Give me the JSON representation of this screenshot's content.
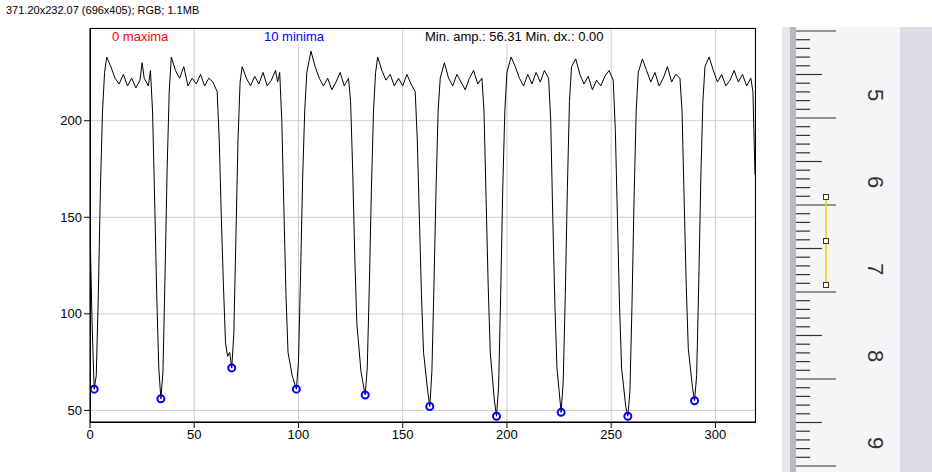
{
  "chart_data": {
    "type": "line",
    "title": "371.20x232.07  (696x405); RGB; 1.1MB",
    "annotations": [
      {
        "text": "0 maxima",
        "color": "#ff0000"
      },
      {
        "text": "10 minima",
        "color": "#0000ff"
      },
      {
        "text": "Min. amp.: 56.31  Min. dx.: 0.00",
        "color": "#000000"
      }
    ],
    "x": [
      0,
      1,
      2,
      3,
      4,
      5,
      6,
      7,
      8,
      10,
      12,
      14,
      16,
      18,
      20,
      22,
      24,
      25,
      26,
      28,
      29,
      30,
      31,
      32,
      33,
      34,
      35,
      36,
      37,
      38,
      39,
      41,
      43,
      45,
      47,
      49,
      51,
      53,
      55,
      57,
      59,
      61,
      62,
      63,
      64,
      65,
      66,
      67,
      68,
      69,
      70,
      71,
      72,
      73,
      75,
      77,
      79,
      81,
      83,
      85,
      87,
      89,
      90,
      91,
      92,
      93,
      94,
      95,
      97,
      99,
      100,
      101,
      102,
      103,
      104,
      106,
      108,
      110,
      112,
      114,
      116,
      118,
      120,
      122,
      124,
      125,
      126,
      127,
      128,
      130,
      132,
      133,
      134,
      135,
      136,
      137,
      138,
      140,
      142,
      144,
      146,
      148,
      150,
      152,
      154,
      156,
      157,
      158,
      159,
      160,
      162,
      163,
      164,
      165,
      166,
      167,
      168,
      170,
      172,
      174,
      176,
      178,
      180,
      182,
      184,
      186,
      188,
      189,
      190,
      191,
      192,
      194,
      195,
      196,
      197,
      198,
      199,
      200,
      202,
      204,
      206,
      208,
      210,
      212,
      214,
      216,
      218,
      220,
      221,
      222,
      223,
      224,
      226,
      227,
      228,
      229,
      230,
      231,
      233,
      235,
      237,
      239,
      241,
      243,
      245,
      247,
      249,
      251,
      252,
      253,
      254,
      255,
      257,
      258,
      259,
      260,
      261,
      262,
      263,
      265,
      267,
      269,
      271,
      273,
      275,
      277,
      279,
      281,
      283,
      284,
      285,
      286,
      287,
      289,
      290,
      291,
      292,
      293,
      294,
      295,
      297,
      299,
      301,
      303,
      305,
      307,
      309,
      311,
      313,
      315,
      317,
      318,
      319
    ],
    "values": [
      145,
      95,
      61,
      68,
      110,
      165,
      205,
      225,
      233,
      228,
      222,
      219,
      224,
      218,
      222,
      217,
      221,
      230,
      222,
      218,
      226,
      205,
      160,
      110,
      72,
      56,
      70,
      120,
      175,
      215,
      233,
      226,
      222,
      228,
      218,
      222,
      219,
      224,
      218,
      222,
      220,
      215,
      190,
      150,
      115,
      85,
      78,
      80,
      72,
      90,
      140,
      190,
      220,
      228,
      222,
      218,
      223,
      219,
      225,
      218,
      221,
      226,
      220,
      225,
      200,
      155,
      110,
      80,
      68,
      61,
      75,
      120,
      170,
      205,
      225,
      236,
      228,
      222,
      218,
      222,
      216,
      220,
      225,
      218,
      222,
      210,
      175,
      130,
      95,
      70,
      58,
      72,
      115,
      165,
      205,
      225,
      233,
      226,
      221,
      224,
      218,
      222,
      218,
      224,
      219,
      215,
      190,
      150,
      110,
      80,
      60,
      52,
      70,
      115,
      165,
      205,
      222,
      230,
      222,
      218,
      224,
      220,
      216,
      222,
      226,
      219,
      222,
      205,
      160,
      115,
      80,
      55,
      47,
      62,
      110,
      165,
      205,
      225,
      233,
      228,
      222,
      218,
      224,
      219,
      225,
      220,
      226,
      222,
      200,
      150,
      105,
      72,
      49,
      65,
      110,
      165,
      210,
      228,
      232,
      224,
      219,
      223,
      216,
      221,
      218,
      223,
      226,
      221,
      195,
      150,
      105,
      72,
      52,
      47,
      60,
      105,
      160,
      205,
      225,
      232,
      226,
      220,
      225,
      218,
      222,
      228,
      220,
      224,
      222,
      205,
      160,
      115,
      82,
      62,
      55,
      68,
      115,
      170,
      210,
      228,
      233,
      226,
      220,
      224,
      218,
      221,
      226,
      220,
      224,
      218,
      222,
      215,
      172
    ],
    "color": "#000000",
    "minima": {
      "x": [
        2,
        34,
        68,
        99,
        132,
        163,
        195,
        226,
        258,
        290
      ],
      "values": [
        61,
        56,
        72,
        61,
        58,
        52,
        47,
        49,
        47,
        55
      ],
      "color": "#0000ff",
      "marker": "circle"
    },
    "xlim": [
      0,
      319
    ],
    "ylim": [
      44,
      248
    ],
    "xticks": [
      0,
      50,
      100,
      150,
      200,
      250,
      300
    ],
    "yticks": [
      50,
      100,
      150,
      200
    ],
    "grid": true,
    "ruler": {
      "labels": [
        "5",
        "6",
        "7",
        "8",
        "9"
      ]
    }
  }
}
